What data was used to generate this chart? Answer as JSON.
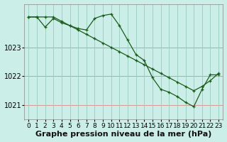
{
  "bg_color": "#cceee8",
  "grid_color_h": "#ff9999",
  "grid_color_v": "#bbddcc",
  "line_color": "#1a5c1a",
  "line1": [
    1024.05,
    1024.05,
    1023.7,
    1024.0,
    1023.85,
    1023.75,
    1023.65,
    1023.6,
    1024.0,
    1024.1,
    1024.15,
    1023.75,
    1023.25,
    1022.75,
    1022.55,
    1021.95,
    1021.55,
    1021.45,
    1021.3,
    1021.1,
    1020.95,
    1021.55,
    1022.05,
    1022.05
  ],
  "line2": [
    1024.05,
    1024.05,
    1024.05,
    1024.05,
    1023.9,
    1023.75,
    1023.6,
    1023.45,
    1023.3,
    1023.15,
    1023.0,
    1022.85,
    1022.7,
    1022.55,
    1022.4,
    1022.25,
    1022.1,
    1021.95,
    1021.8,
    1021.65,
    1021.5,
    1021.65,
    1021.85,
    1022.1
  ],
  "hours": [
    0,
    1,
    2,
    3,
    4,
    5,
    6,
    7,
    8,
    9,
    10,
    11,
    12,
    13,
    14,
    15,
    16,
    17,
    18,
    19,
    20,
    21,
    22,
    23
  ],
  "ylim": [
    1020.5,
    1024.5
  ],
  "yticks": [
    1021,
    1022,
    1023
  ],
  "xlabel": "Graphe pression niveau de la mer (hPa)",
  "xlabel_fontsize": 8,
  "tick_fontsize": 6.5
}
